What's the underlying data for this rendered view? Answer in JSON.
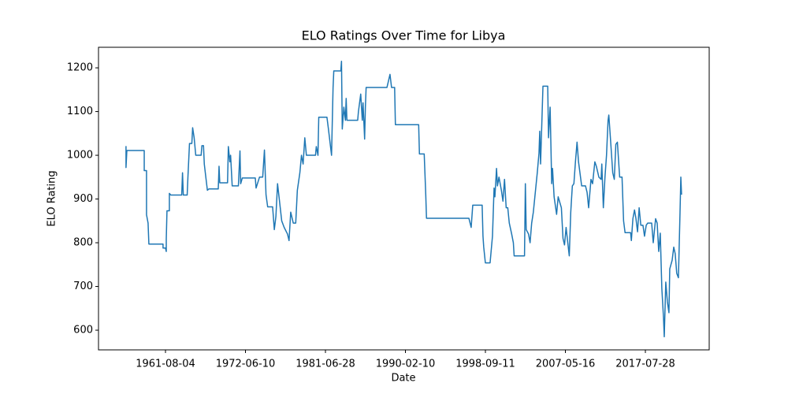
{
  "chart_data": {
    "type": "line",
    "title": "ELO Ratings Over Time for Libya",
    "x_label": "Date",
    "y_label": "ELO Rating",
    "color": "#1f77b4",
    "xlim": [
      "1952-08-20",
      "2025-08-05"
    ],
    "xticks": [
      "1961-08-04",
      "1972-06-10",
      "1981-06-28",
      "1990-02-10",
      "1998-09-11",
      "2007-05-16",
      "2017-07-28"
    ],
    "ylim": [
      555,
      1247
    ],
    "yticks": [
      600,
      700,
      800,
      900,
      1000,
      1100,
      1200
    ],
    "x": [
      "1956-04-24",
      "1956-04-24",
      "1956-06-05",
      "1958-10-01",
      "1958-10-01",
      "1959-01-21",
      "1959-01-21",
      "1959-04-07",
      "1959-05-16",
      "1961-04-07",
      "1961-04-07",
      "1961-08-03",
      "1961-09-12",
      "1961-09-12",
      "1961-10-17",
      "1962-02-13",
      "1962-02-13",
      "1962-04-27",
      "1963-10-17",
      "1963-11-26",
      "1964-01-04",
      "1964-07-14",
      "1964-08-20",
      "1964-11-06",
      "1965-03-02",
      "1965-04-11",
      "1965-06-25",
      "1965-09-12",
      "1966-06-05",
      "1966-07-14",
      "1966-10-01",
      "1966-11-09",
      "1967-01-24",
      "1967-04-11",
      "1967-06-25",
      "1968-10-01",
      "1968-11-09",
      "1968-12-15",
      "1970-01-04",
      "1970-02-13",
      "1970-04-27",
      "1970-06-05",
      "1970-08-23",
      "1971-06-25",
      "1971-09-12",
      "1971-10-17",
      "1972-01-04",
      "1973-07-21",
      "1973-08-23",
      "1974-01-11",
      "1974-05-23",
      "1974-08-03",
      "1974-09-05",
      "1974-10-07",
      "1974-12-15",
      "1975-07-07",
      "1975-09-15",
      "1975-11-20",
      "1976-01-27",
      "1976-04-07",
      "1976-07-17",
      "1976-10-27",
      "1977-03-12",
      "1977-05-16",
      "1977-07-24",
      "1977-11-06",
      "1978-02-16",
      "1978-04-24",
      "1978-08-06",
      "1978-10-11",
      "1978-12-18",
      "1979-02-26",
      "1979-05-03",
      "1980-05-13",
      "1980-06-15",
      "1980-08-23",
      "1980-09-25",
      "1981-08-26",
      "1981-10-24",
      "1982-02-23",
      "1982-04-24",
      "1982-05-23",
      "1983-02-23",
      "1983-03-22",
      "1983-04-21",
      "1983-06-22",
      "1983-08-23",
      "1983-09-22",
      "1983-10-21",
      "1984-12-18",
      "1985-01-17",
      "1985-04-17",
      "1985-06-18",
      "1985-07-17",
      "1985-09-18",
      "1985-10-17",
      "1985-11-16",
      "1988-02-13",
      "1988-04-14",
      "1988-06-12",
      "1988-08-13",
      "1988-12-12",
      "1989-01-11",
      "1991-07-14",
      "1991-08-13",
      "1992-02-16",
      "1992-03-15",
      "1992-04-17",
      "1992-05-16",
      "1996-12-02",
      "1997-03-02",
      "1997-05-03",
      "1998-05-06",
      "1998-06-08",
      "1998-07-07",
      "1998-09-09",
      "1999-03-15",
      "1999-06-18",
      "1999-08-20",
      "1999-09-22",
      "1999-11-26",
      "2000-01-01",
      "2000-03-02",
      "2000-06-05",
      "2000-08-06",
      "2000-10-07",
      "2000-12-12",
      "2001-02-13",
      "2001-04-14",
      "2001-07-17",
      "2001-09-22",
      "2001-10-24",
      "2002-12-08",
      "2003-01-11",
      "2003-02-13",
      "2003-05-16",
      "2003-07-17",
      "2003-09-18",
      "2003-11-23",
      "2004-02-26",
      "2004-04-27",
      "2004-07-04",
      "2004-08-03",
      "2004-09-05",
      "2004-12-08",
      "2005-06-15",
      "2005-07-17",
      "2005-09-18",
      "2005-11-20",
      "2005-12-22",
      "2006-02-23",
      "2006-06-02",
      "2006-08-03",
      "2006-12-08",
      "2007-02-10",
      "2007-04-11",
      "2007-06-18",
      "2007-09-05",
      "2007-11-13",
      "2008-01-21",
      "2008-02-26",
      "2008-04-04",
      "2008-06-15",
      "2008-08-26",
      "2008-11-09",
      "2009-01-17",
      "2009-06-12",
      "2009-12-08",
      "2010-02-20",
      "2010-05-03",
      "2010-08-20",
      "2010-11-03",
      "2011-02-16",
      "2011-04-27",
      "2011-08-23",
      "2011-12-05",
      "2012-01-07",
      "2012-03-18",
      "2012-06-02",
      "2012-08-13",
      "2012-10-24",
      "2012-11-28",
      "2013-02-10",
      "2013-05-30",
      "2013-08-10",
      "2013-10-21",
      "2014-01-01",
      "2014-04-17",
      "2014-08-06",
      "2014-10-17",
      "2014-12-25",
      "2015-09-09",
      "2015-10-14",
      "2015-12-25",
      "2016-03-09",
      "2016-05-16",
      "2016-07-28",
      "2016-10-11",
      "2016-12-28",
      "2017-04-07",
      "2017-06-18",
      "2017-09-05",
      "2017-11-13",
      "2018-05-13",
      "2018-07-24",
      "2018-11-09",
      "2019-01-21",
      "2019-04-01",
      "2019-06-12",
      "2019-08-23",
      "2019-11-06",
      "2019-12-12",
      "2020-02-20",
      "2020-05-03",
      "2020-07-14",
      "2020-08-20",
      "2020-12-08",
      "2021-02-20",
      "2021-04-27",
      "2021-07-07",
      "2021-09-22",
      "2021-12-05",
      "2022-01-11",
      "2022-02-13"
    ],
    "values": [
      1021,
      972,
      1011,
      1011,
      965,
      965,
      864,
      845,
      797,
      797,
      788,
      788,
      780,
      808,
      873,
      873,
      913,
      909,
      909,
      960,
      909,
      909,
      950,
      1027,
      1027,
      1063,
      1040,
      1000,
      1000,
      1022,
      1022,
      980,
      950,
      920,
      923,
      923,
      975,
      937,
      937,
      1020,
      985,
      1000,
      930,
      930,
      1010,
      935,
      948,
      948,
      925,
      950,
      950,
      1012,
      960,
      910,
      882,
      882,
      830,
      860,
      935,
      900,
      850,
      835,
      820,
      805,
      870,
      845,
      845,
      920,
      960,
      1000,
      980,
      1040,
      1000,
      1000,
      1020,
      1000,
      1087,
      1087,
      1060,
      1000,
      1155,
      1193,
      1193,
      1215,
      1060,
      1110,
      1080,
      1130,
      1080,
      1080,
      1100,
      1140,
      1080,
      1120,
      1037,
      1110,
      1155,
      1155,
      1170,
      1185,
      1155,
      1155,
      1070,
      1070,
      1003,
      1003,
      960,
      910,
      856,
      856,
      835,
      886,
      886,
      815,
      790,
      754,
      754,
      815,
      925,
      905,
      970,
      930,
      950,
      920,
      895,
      945,
      880,
      880,
      845,
      820,
      800,
      770,
      770,
      935,
      830,
      820,
      800,
      845,
      870,
      925,
      960,
      1005,
      1055,
      980,
      1158,
      1158,
      1040,
      1110,
      935,
      970,
      905,
      865,
      905,
      880,
      810,
      795,
      835,
      800,
      770,
      870,
      900,
      930,
      935,
      985,
      1030,
      985,
      930,
      930,
      915,
      880,
      945,
      935,
      985,
      975,
      950,
      945,
      980,
      880,
      950,
      1000,
      1080,
      1092,
      1040,
      960,
      945,
      1025,
      1030,
      950,
      950,
      850,
      823,
      823,
      805,
      855,
      875,
      855,
      825,
      880,
      840,
      840,
      815,
      840,
      845,
      845,
      800,
      855,
      845,
      780,
      822,
      695,
      630,
      585,
      710,
      665,
      640,
      740,
      760,
      790,
      775,
      730,
      720,
      870,
      950,
      910
    ]
  }
}
